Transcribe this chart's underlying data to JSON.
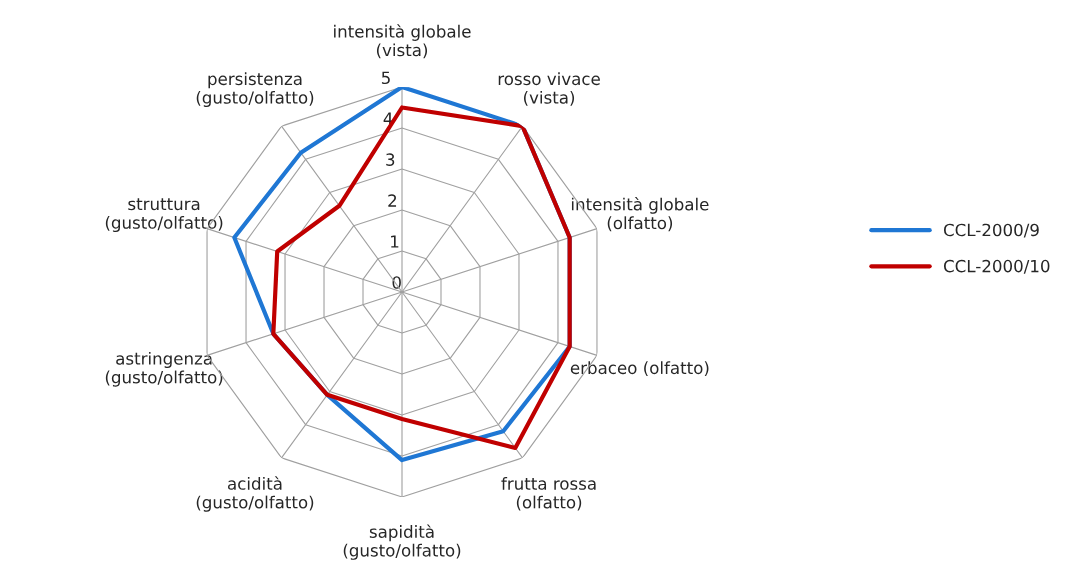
{
  "chart_data": {
    "type": "radar",
    "categories": [
      "intensità globale\n(vista)",
      "rosso vivace\n(vista)",
      "intensità globale\n(olfatto)",
      "erbaceo (olfatto)",
      "frutta rossa\n(olfatto)",
      "sapidità\n(gusto/olfatto)",
      "acidità\n(gusto/olfatto)",
      "astringenza\n(gusto/olfatto)",
      "struttura\n(gusto/olfatto)",
      "persistenza\n(gusto/olfatto)"
    ],
    "series": [
      {
        "name": "CCL-2000/9",
        "color": "#1f77d4",
        "values": [
          5,
          5,
          4.3,
          4.3,
          4.2,
          4.1,
          3.1,
          3.3,
          4.3,
          4.2
        ]
      },
      {
        "name": "CCL-2000/10",
        "color": "#c00000",
        "values": [
          4.5,
          5,
          4.3,
          4.3,
          4.7,
          3.1,
          3.1,
          3.3,
          3.2,
          2.6
        ]
      }
    ],
    "ylim": [
      0,
      5
    ],
    "yticks": [
      0,
      1,
      2,
      3,
      4,
      5
    ],
    "grid": true,
    "legend": "right",
    "marker": "none",
    "line_style": "solid"
  }
}
